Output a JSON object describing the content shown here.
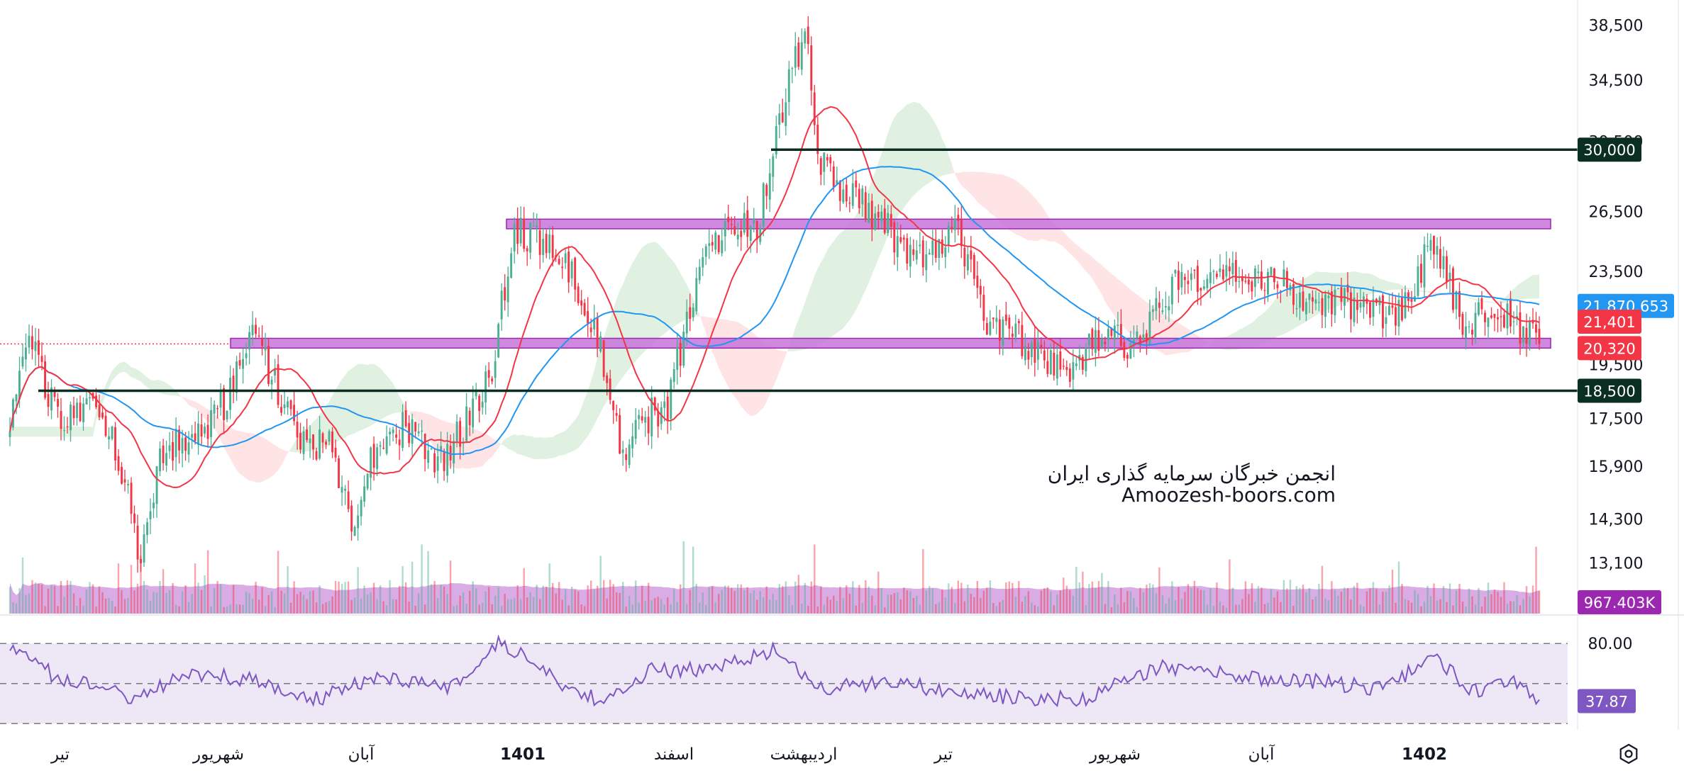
{
  "watermark": {
    "line1": "انجمن خبرگان سرمایه گذاری ایران",
    "line2": "Amoozesh-boors.com"
  },
  "price_axis": {
    "ticks": [
      "38,500",
      "34,500",
      "30,500",
      "26,500",
      "23,500",
      "19,500",
      "17,500",
      "15,900",
      "14,300",
      "13,100"
    ],
    "tick_values": [
      38500,
      34500,
      30500,
      26500,
      23500,
      19500,
      17500,
      15900,
      14300,
      13100
    ]
  },
  "price_tags": [
    {
      "label": "30,000",
      "value": 30000,
      "color": "#0b2e22"
    },
    {
      "label": "21,870.653",
      "value": 21870.653,
      "color": "#2196f3"
    },
    {
      "label": "21,401",
      "value": 21401,
      "color": "#f23645"
    },
    {
      "label": "20,320",
      "value": 20320,
      "color": "#f23645"
    },
    {
      "label": "18,500",
      "value": 18500,
      "color": "#0b2e22"
    }
  ],
  "volume_tag": {
    "label": "967.403K",
    "color": "#9c27b0"
  },
  "rsi": {
    "upper_label": "80.00",
    "value_label": "37.87",
    "value": 37.87,
    "upper": 80,
    "middle": 50,
    "lower": 20,
    "tag_color": "#7e57c2"
  },
  "time_axis": [
    {
      "label": "تیر",
      "bold": false
    },
    {
      "label": "شهریور",
      "bold": false
    },
    {
      "label": "آبان",
      "bold": false
    },
    {
      "label": "1401",
      "bold": true
    },
    {
      "label": "اسفند",
      "bold": false
    },
    {
      "label": "اردیبهشت",
      "bold": false
    },
    {
      "label": "تیر",
      "bold": false
    },
    {
      "label": "شهریور",
      "bold": false
    },
    {
      "label": "آبان",
      "bold": false
    },
    {
      "label": "1402",
      "bold": true
    }
  ],
  "colors": {
    "up": "#4caf93",
    "down": "#f23645",
    "ma_fast": "#f23645",
    "ma_slow": "#2196f3",
    "zone_fill": "#c774d9",
    "zone_border": "#9c27b0",
    "level_line": "#0b2e22",
    "rsi_line": "#7e57c2",
    "rsi_band": "#ede7f6",
    "volume_area": "#b968d0",
    "cloud_green": "#c8e6c9",
    "cloud_red": "#ffcdd2"
  },
  "chart_data": {
    "type": "candlestick",
    "title": "",
    "y_scale": "log",
    "ylim": [
      11800,
      40500
    ],
    "horizontal_levels": [
      30000,
      18500
    ],
    "resistance_zone": [
      25600,
      26100
    ],
    "support_zone": [
      20150,
      20550
    ],
    "ma_fast_last": 21401,
    "ma_slow_last": 21870.653,
    "last_close": 20320,
    "volume_last": "967.403K",
    "rsi_last": 37.87,
    "price_path": [
      {
        "t": 0,
        "p": 17000
      },
      {
        "t": 0.01,
        "p": 19800
      },
      {
        "t": 0.017,
        "p": 20800
      },
      {
        "t": 0.025,
        "p": 18200
      },
      {
        "t": 0.035,
        "p": 17400
      },
      {
        "t": 0.05,
        "p": 18000
      },
      {
        "t": 0.07,
        "p": 16400
      },
      {
        "t": 0.085,
        "p": 13200
      },
      {
        "t": 0.1,
        "p": 16500
      },
      {
        "t": 0.12,
        "p": 16800
      },
      {
        "t": 0.14,
        "p": 18000
      },
      {
        "t": 0.16,
        "p": 20700
      },
      {
        "t": 0.175,
        "p": 18600
      },
      {
        "t": 0.19,
        "p": 16800
      },
      {
        "t": 0.21,
        "p": 16500
      },
      {
        "t": 0.225,
        "p": 13900
      },
      {
        "t": 0.24,
        "p": 16800
      },
      {
        "t": 0.26,
        "p": 17200
      },
      {
        "t": 0.28,
        "p": 16000
      },
      {
        "t": 0.3,
        "p": 17500
      },
      {
        "t": 0.315,
        "p": 19300
      },
      {
        "t": 0.33,
        "p": 25500
      },
      {
        "t": 0.35,
        "p": 25000
      },
      {
        "t": 0.37,
        "p": 23000
      },
      {
        "t": 0.385,
        "p": 20500
      },
      {
        "t": 0.4,
        "p": 16200
      },
      {
        "t": 0.415,
        "p": 17500
      },
      {
        "t": 0.43,
        "p": 18000
      },
      {
        "t": 0.44,
        "p": 20500
      },
      {
        "t": 0.46,
        "p": 25000
      },
      {
        "t": 0.49,
        "p": 25800
      },
      {
        "t": 0.5,
        "p": 31000
      },
      {
        "t": 0.52,
        "p": 38000
      },
      {
        "t": 0.53,
        "p": 29000
      },
      {
        "t": 0.55,
        "p": 27500
      },
      {
        "t": 0.57,
        "p": 26000
      },
      {
        "t": 0.59,
        "p": 24000
      },
      {
        "t": 0.62,
        "p": 25500
      },
      {
        "t": 0.64,
        "p": 21000
      },
      {
        "t": 0.66,
        "p": 20500
      },
      {
        "t": 0.69,
        "p": 19300
      },
      {
        "t": 0.71,
        "p": 20500
      },
      {
        "t": 0.74,
        "p": 20400
      },
      {
        "t": 0.76,
        "p": 22800
      },
      {
        "t": 0.79,
        "p": 23300
      },
      {
        "t": 0.82,
        "p": 23200
      },
      {
        "t": 0.85,
        "p": 22300
      },
      {
        "t": 0.88,
        "p": 22000
      },
      {
        "t": 0.91,
        "p": 21500
      },
      {
        "t": 0.93,
        "p": 25000
      },
      {
        "t": 0.95,
        "p": 21200
      },
      {
        "t": 0.97,
        "p": 21800
      },
      {
        "t": 1,
        "p": 20320
      }
    ],
    "rsi_path": [
      {
        "t": 0,
        "v": 78
      },
      {
        "t": 0.03,
        "v": 55
      },
      {
        "t": 0.08,
        "v": 40
      },
      {
        "t": 0.12,
        "v": 58
      },
      {
        "t": 0.16,
        "v": 52
      },
      {
        "t": 0.2,
        "v": 38
      },
      {
        "t": 0.24,
        "v": 55
      },
      {
        "t": 0.29,
        "v": 48
      },
      {
        "t": 0.32,
        "v": 82
      },
      {
        "t": 0.36,
        "v": 50
      },
      {
        "t": 0.39,
        "v": 35
      },
      {
        "t": 0.42,
        "v": 60
      },
      {
        "t": 0.45,
        "v": 60
      },
      {
        "t": 0.5,
        "v": 75
      },
      {
        "t": 0.53,
        "v": 46
      },
      {
        "t": 0.58,
        "v": 52
      },
      {
        "t": 0.62,
        "v": 42
      },
      {
        "t": 0.66,
        "v": 40
      },
      {
        "t": 0.7,
        "v": 38
      },
      {
        "t": 0.75,
        "v": 62
      },
      {
        "t": 0.8,
        "v": 56
      },
      {
        "t": 0.85,
        "v": 52
      },
      {
        "t": 0.9,
        "v": 46
      },
      {
        "t": 0.93,
        "v": 70
      },
      {
        "t": 0.96,
        "v": 42
      },
      {
        "t": 0.98,
        "v": 52
      },
      {
        "t": 1,
        "v": 37.87
      }
    ]
  }
}
